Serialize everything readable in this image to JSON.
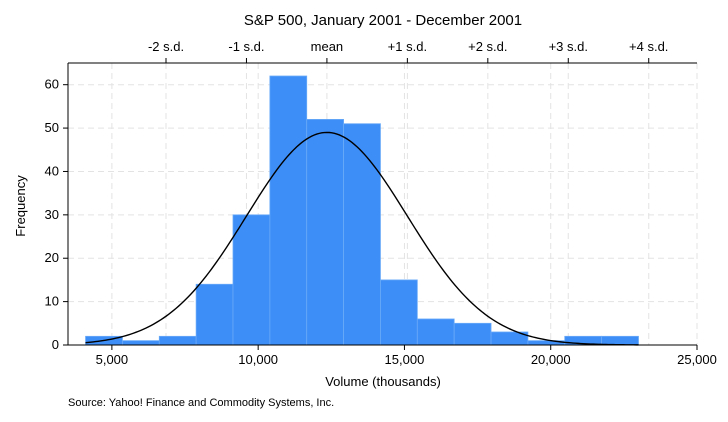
{
  "chart_data": {
    "type": "bar",
    "title": "S&P 500, January 2001 - December 2001",
    "xlabel": "Volume (thousands)",
    "ylabel": "Frequency",
    "note": "Source: Yahoo! Finance and Commodity Systems, Inc.",
    "xlim": [
      3500,
      25000
    ],
    "ylim": [
      0,
      65
    ],
    "x_ticks": [
      5000,
      10000,
      15000,
      20000,
      25000
    ],
    "x_tick_labels": [
      "5,000",
      "10,000",
      "15,000",
      "20,000",
      "25,000"
    ],
    "y_ticks": [
      0,
      10,
      20,
      30,
      40,
      50,
      60
    ],
    "y_tick_labels": [
      "0",
      "10",
      "20",
      "30",
      "40",
      "50",
      "60"
    ],
    "top_axis": {
      "ticks": [
        6850,
        9600,
        12350,
        15100,
        17850,
        20600,
        23350
      ],
      "labels": [
        "-2 s.d.",
        "-1 s.d.",
        "mean",
        "+1 s.d.",
        "+2 s.d.",
        "+3 s.d.",
        "+4 s.d."
      ]
    },
    "bins": {
      "edges": [
        4100,
        5360,
        6620,
        7880,
        9140,
        10400,
        11660,
        12920,
        14180,
        15440,
        16700,
        17960,
        19220,
        20480,
        21740,
        23000
      ],
      "values": [
        2,
        1,
        2,
        14,
        30,
        62,
        52,
        51,
        15,
        6,
        5,
        3,
        1,
        2,
        2
      ]
    },
    "normal_curve": {
      "mean": 12350,
      "sd": 2750,
      "peak": 49
    },
    "grid": true,
    "colors": {
      "bar_fill": "#3d8ef7",
      "bar_stroke": "#6aaaf8",
      "curve": "#000000",
      "grid": "#e3e3e3"
    }
  }
}
